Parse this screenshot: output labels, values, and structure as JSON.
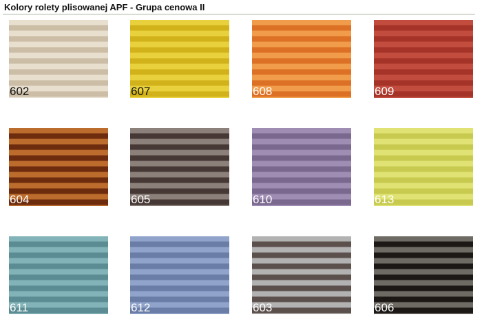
{
  "header": {
    "title": "Kolory rolety plisowanej APF - Grupa cenowa II"
  },
  "swatches": [
    {
      "code": "602",
      "light": "#e8dfcf",
      "dark": "#cbbda6",
      "label_color": "#111111"
    },
    {
      "code": "607",
      "light": "#e9d13e",
      "dark": "#d2b21a",
      "label_color": "#111111"
    },
    {
      "code": "608",
      "light": "#f19c4a",
      "dark": "#dc7024",
      "label_color": "#ffffff"
    },
    {
      "code": "609",
      "light": "#c24c3e",
      "dark": "#a53328",
      "label_color": "#ffffff"
    },
    {
      "code": "604",
      "light": "#bc6c2c",
      "dark": "#6e2c0e",
      "label_color": "#ffffff"
    },
    {
      "code": "605",
      "light": "#8c807a",
      "dark": "#463834",
      "label_color": "#ffffff"
    },
    {
      "code": "610",
      "light": "#a08db3",
      "dark": "#7a688e",
      "label_color": "#ffffff"
    },
    {
      "code": "613",
      "light": "#e0e374",
      "dark": "#c7ca4e",
      "label_color": "#ffffff"
    },
    {
      "code": "611",
      "light": "#82b3b8",
      "dark": "#5c8c93",
      "label_color": "#ffffff"
    },
    {
      "code": "612",
      "light": "#90a3cb",
      "dark": "#6a7da6",
      "label_color": "#ffffff"
    },
    {
      "code": "603",
      "light": "#b2b2b2",
      "dark": "#5c504c",
      "label_color": "#ffffff"
    },
    {
      "code": "606",
      "light": "#6e6a64",
      "dark": "#1c1816",
      "label_color": "#ffffff"
    }
  ]
}
